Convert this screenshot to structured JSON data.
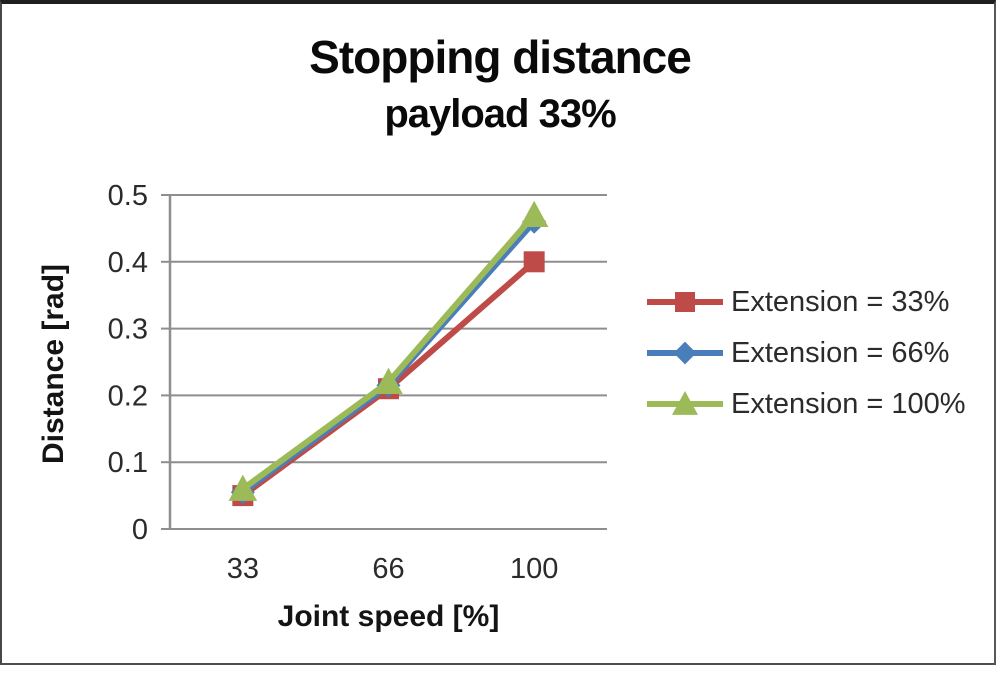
{
  "figure": {
    "title": "Stopping distance",
    "subtitle": "payload 33%"
  },
  "chart_data": {
    "type": "line",
    "title": "Stopping distance",
    "subtitle": "payload 33%",
    "xlabel": "Joint speed [%]",
    "ylabel": "Distance [rad]",
    "categories": [
      33,
      66,
      100
    ],
    "x_tick_labels": [
      "33",
      "66",
      "100"
    ],
    "ylim": [
      0,
      0.5
    ],
    "y_ticks": [
      0,
      0.1,
      0.2,
      0.3,
      0.4,
      0.5
    ],
    "y_tick_labels": [
      "0",
      "0.1",
      "0.2",
      "0.3",
      "0.4",
      "0.5"
    ],
    "grid": true,
    "legend_position": "right",
    "series": [
      {
        "name": "Extension = 33%",
        "marker": "square",
        "color": "#BE4B48",
        "values": [
          0.05,
          0.21,
          0.4
        ]
      },
      {
        "name": "Extension = 66%",
        "marker": "diamond",
        "color": "#4A7EBB",
        "values": [
          0.055,
          0.215,
          0.46
        ]
      },
      {
        "name": "Extension = 100%",
        "marker": "triangle",
        "color": "#9CBB58",
        "values": [
          0.06,
          0.22,
          0.47
        ]
      }
    ],
    "colors": {
      "gridline": "#8e8e8e",
      "axis": "#8e8e8e",
      "tick_text": "#2b2b2b",
      "title_text": "#0a0a0a"
    }
  }
}
